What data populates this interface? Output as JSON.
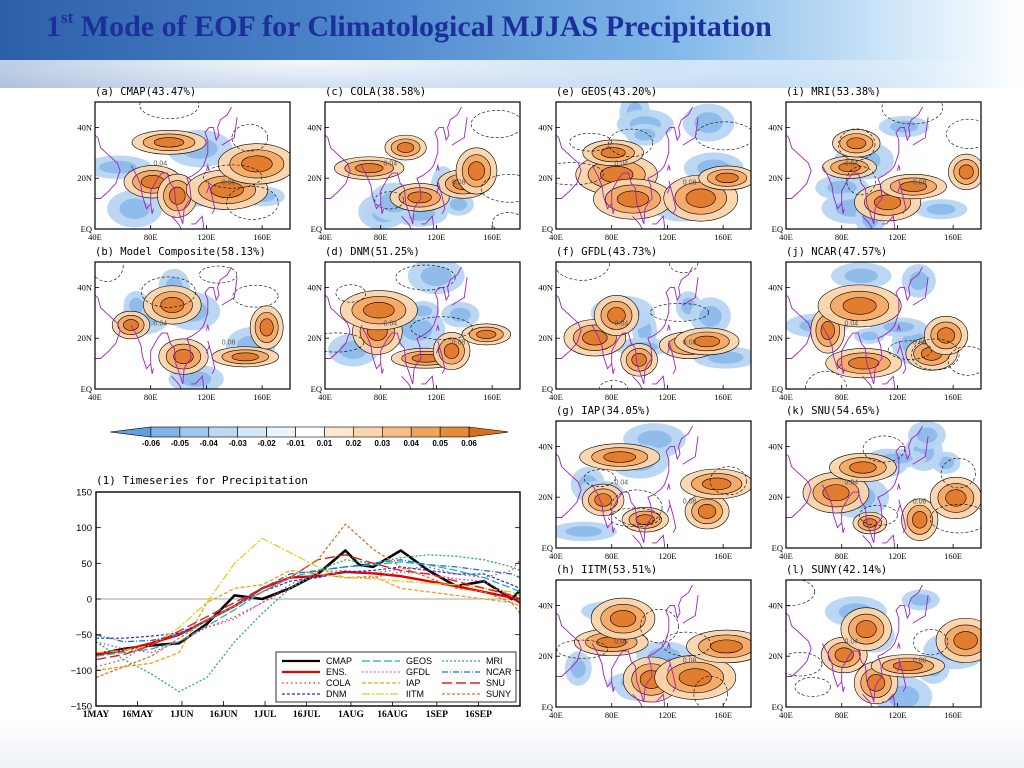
{
  "slide": {
    "title_prefix": "1",
    "title_sup": "st",
    "title_rest": " Mode of EOF for Climatological MJJAS Precipitation"
  },
  "chart_data": [
    {
      "type": "heatmap",
      "panels": [
        {
          "id": "a",
          "title": "(a)  CMAP(43.47%)",
          "col": 0,
          "row": 0
        },
        {
          "id": "b",
          "title": "(b)  Model Composite(58.13%)",
          "col": 0,
          "row": 1
        },
        {
          "id": "c",
          "title": "(c)  COLA(38.58%)",
          "col": 1,
          "row": 0
        },
        {
          "id": "d",
          "title": "(d)  DNM(51.25%)",
          "col": 1,
          "row": 1
        },
        {
          "id": "e",
          "title": "(e)  GEOS(43.20%)",
          "col": 2,
          "row": 0
        },
        {
          "id": "f",
          "title": "(f)  GFDL(43.73%)",
          "col": 2,
          "row": 1
        },
        {
          "id": "g",
          "title": "(g)  IAP(34.05%)",
          "col": 2,
          "row": 2
        },
        {
          "id": "h",
          "title": "(h)  IITM(53.51%)",
          "col": 2,
          "row": 3
        },
        {
          "id": "i",
          "title": "(i)  MRI(53.38%)",
          "col": 3,
          "row": 0
        },
        {
          "id": "j",
          "title": "(j)  NCAR(47.57%)",
          "col": 3,
          "row": 1
        },
        {
          "id": "k",
          "title": "(k)  SNU(54.65%)",
          "col": 3,
          "row": 2
        },
        {
          "id": "l",
          "title": "(l)  SUNY(42.14%)",
          "col": 3,
          "row": 3
        }
      ],
      "x_ticks": [
        "40E",
        "80E",
        "120E",
        "160E"
      ],
      "y_ticks": [
        "40N",
        "20N",
        "EQ"
      ],
      "contour_labels": [
        "0.04",
        "0.08",
        "0"
      ],
      "colorbar": {
        "levels": [
          "-0.06",
          "-0.05",
          "-0.04",
          "-0.03",
          "-0.02",
          "-0.01",
          "0.01",
          "0.02",
          "0.03",
          "0.04",
          "0.05",
          "0.06"
        ],
        "colors": [
          "#5f9ee0",
          "#7fb2e6",
          "#9ec5ec",
          "#bcd8f2",
          "#d6e7f7",
          "#ecf3fb",
          "#ffffff",
          "#fde9d2",
          "#fbd5ad",
          "#f8bd84",
          "#f2a25c",
          "#e88a3c",
          "#d86d20"
        ]
      }
    },
    {
      "type": "line",
      "title": "(1) Timeseries for Precipitation",
      "x_tick_labels": [
        "1MAY",
        "16MAY",
        "1JUN",
        "16JUN",
        "1JUL",
        "16JUL",
        "1AUG",
        "16AUG",
        "1SEP",
        "16SEP"
      ],
      "x_tick_days": [
        0,
        15,
        31,
        46,
        61,
        76,
        92,
        107,
        123,
        138
      ],
      "x_range_days": [
        0,
        153
      ],
      "y_ticks": [
        150,
        100,
        50,
        0,
        -50,
        -100,
        -150
      ],
      "ylim": [
        -150,
        150
      ],
      "series": [
        {
          "name": "CMAP",
          "color": "#000000",
          "dash": "",
          "width": 2.6,
          "x": [
            0,
            10,
            20,
            30,
            40,
            50,
            60,
            70,
            80,
            90,
            95,
            100,
            110,
            120,
            130,
            140,
            150,
            153
          ],
          "y": [
            -78,
            -70,
            -65,
            -62,
            -35,
            5,
            0,
            15,
            35,
            68,
            48,
            45,
            68,
            40,
            18,
            25,
            0,
            12
          ]
        },
        {
          "name": "ENS.",
          "color": "#e00000",
          "dash": "",
          "width": 2.4,
          "x": [
            0,
            10,
            20,
            30,
            40,
            50,
            60,
            70,
            80,
            90,
            100,
            110,
            120,
            130,
            140,
            150,
            153
          ],
          "y": [
            -78,
            -72,
            -62,
            -50,
            -30,
            -10,
            15,
            30,
            32,
            38,
            36,
            32,
            25,
            18,
            10,
            2,
            -5
          ]
        },
        {
          "name": "COLA",
          "color": "#e03030",
          "dash": "1.5,3",
          "width": 1.2,
          "x": [
            0,
            10,
            20,
            30,
            40,
            50,
            60,
            70,
            80,
            90,
            100,
            110,
            120,
            130,
            140,
            150,
            153
          ],
          "y": [
            -95,
            -85,
            -60,
            -48,
            -40,
            -25,
            -5,
            20,
            38,
            40,
            36,
            42,
            45,
            35,
            30,
            40,
            55
          ]
        },
        {
          "name": "DNM",
          "color": "#2030d0",
          "dash": "3,2",
          "width": 1.2,
          "x": [
            0,
            10,
            20,
            30,
            40,
            50,
            60,
            70,
            80,
            90,
            100,
            110,
            120,
            130,
            140,
            150,
            153
          ],
          "y": [
            -55,
            -55,
            -52,
            -48,
            -30,
            -10,
            10,
            25,
            30,
            38,
            40,
            45,
            40,
            35,
            35,
            20,
            15
          ]
        },
        {
          "name": "GEOS",
          "color": "#10b0d0",
          "dash": "8,3",
          "width": 1.3,
          "x": [
            0,
            10,
            20,
            30,
            40,
            50,
            60,
            70,
            80,
            90,
            100,
            110,
            120,
            130,
            140,
            150,
            153
          ],
          "y": [
            -80,
            -75,
            -70,
            -60,
            -38,
            -15,
            10,
            30,
            40,
            45,
            48,
            52,
            48,
            40,
            30,
            15,
            10
          ]
        },
        {
          "name": "GFDL",
          "color": "#c040c0",
          "dash": "1.5,2.5",
          "width": 1.3,
          "x": [
            0,
            10,
            20,
            30,
            40,
            50,
            60,
            70,
            80,
            90,
            100,
            110,
            120,
            130,
            140,
            150,
            153
          ],
          "y": [
            -60,
            -70,
            -75,
            -60,
            -40,
            -28,
            -5,
            15,
            35,
            30,
            30,
            38,
            35,
            28,
            25,
            5,
            0
          ]
        },
        {
          "name": "IAP",
          "color": "#f0a020",
          "dash": "4,2",
          "width": 1.3,
          "x": [
            0,
            10,
            20,
            30,
            40,
            50,
            60,
            70,
            80,
            90,
            100,
            110,
            120,
            130,
            140,
            150,
            153
          ],
          "y": [
            -100,
            -95,
            -90,
            -75,
            -5,
            15,
            20,
            40,
            35,
            30,
            32,
            15,
            10,
            5,
            0,
            -5,
            -10
          ]
        },
        {
          "name": "IITM",
          "color": "#e0d020",
          "dash": "8,2,2,2",
          "width": 1.3,
          "x": [
            0,
            10,
            20,
            30,
            40,
            50,
            60,
            70,
            80,
            90,
            100,
            110,
            120,
            130,
            140,
            150,
            153
          ],
          "y": [
            -75,
            -72,
            -65,
            -40,
            -5,
            50,
            85,
            65,
            45,
            30,
            28,
            25,
            22,
            20,
            15,
            10,
            5
          ]
        },
        {
          "name": "MRI",
          "color": "#20b070",
          "dash": "2,2",
          "width": 1.3,
          "x": [
            0,
            10,
            20,
            30,
            40,
            50,
            60,
            70,
            80,
            90,
            100,
            110,
            120,
            130,
            140,
            150,
            153
          ],
          "y": [
            -60,
            -85,
            -105,
            -130,
            -110,
            -60,
            -20,
            15,
            40,
            55,
            50,
            58,
            62,
            60,
            55,
            45,
            40
          ]
        },
        {
          "name": "NCAR",
          "color": "#2070c0",
          "dash": "6,2,1,2",
          "width": 1.3,
          "x": [
            0,
            10,
            20,
            30,
            40,
            50,
            60,
            70,
            80,
            90,
            100,
            110,
            120,
            130,
            140,
            150,
            153
          ],
          "y": [
            -50,
            -60,
            -58,
            -50,
            -30,
            -10,
            15,
            35,
            40,
            45,
            50,
            55,
            48,
            45,
            40,
            35,
            30
          ]
        },
        {
          "name": "SNU",
          "color": "#e02020",
          "dash": "10,4",
          "width": 1.4,
          "x": [
            0,
            10,
            20,
            30,
            40,
            50,
            60,
            70,
            80,
            90,
            100,
            110,
            120,
            130,
            140,
            150,
            153
          ],
          "y": [
            -85,
            -78,
            -65,
            -45,
            -25,
            -5,
            15,
            30,
            55,
            62,
            50,
            40,
            35,
            25,
            15,
            5,
            0
          ]
        },
        {
          "name": "SUNY",
          "color": "#e07020",
          "dash": "3,2",
          "width": 1.3,
          "x": [
            0,
            10,
            20,
            30,
            40,
            50,
            60,
            70,
            80,
            90,
            100,
            110,
            120,
            130,
            140,
            150,
            153
          ],
          "y": [
            -110,
            -95,
            -80,
            -55,
            -30,
            -10,
            10,
            30,
            55,
            105,
            70,
            45,
            30,
            15,
            10,
            -5,
            -20
          ]
        }
      ],
      "legend_placement": "bottom-right"
    }
  ]
}
